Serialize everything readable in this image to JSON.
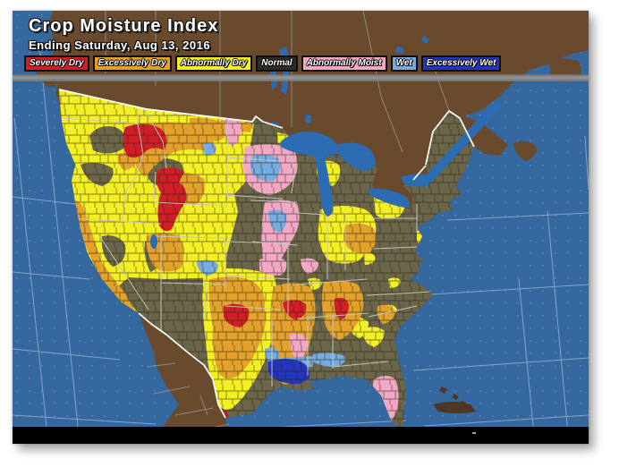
{
  "header": {
    "title": "Crop Moisture Index",
    "subtitle": "Ending Saturday, Aug 13, 2016"
  },
  "legend": {
    "items": [
      {
        "key": "severely-dry",
        "label": "Severely Dry",
        "color": "#d01f26"
      },
      {
        "key": "excessively-dry",
        "label": "Excessively Dry",
        "color": "#e2a12b"
      },
      {
        "key": "abnormally-dry",
        "label": "Abnormally Dry",
        "color": "#f3ef25"
      },
      {
        "key": "normal",
        "label": "Normal",
        "color": "#2e2a26"
      },
      {
        "key": "abnormally-moist",
        "label": "Abnormally Moist",
        "color": "#f2a7c5"
      },
      {
        "key": "wet",
        "label": "Wet",
        "color": "#76abe0"
      },
      {
        "key": "excessively-wet",
        "label": "Excessively Wet",
        "color": "#2336bd"
      }
    ]
  },
  "map": {
    "colors": {
      "ocean": "#34689e",
      "ocean_dot": "#5b86b3",
      "graticule": "#93afcd",
      "foreign_land": "#6a4a2d",
      "us_normal": "#6b664a",
      "lakes": "#2b6cb3",
      "state_line": "#c4c4c4",
      "national_border": "#ffffff",
      "bottom_bar": "#000000"
    }
  }
}
